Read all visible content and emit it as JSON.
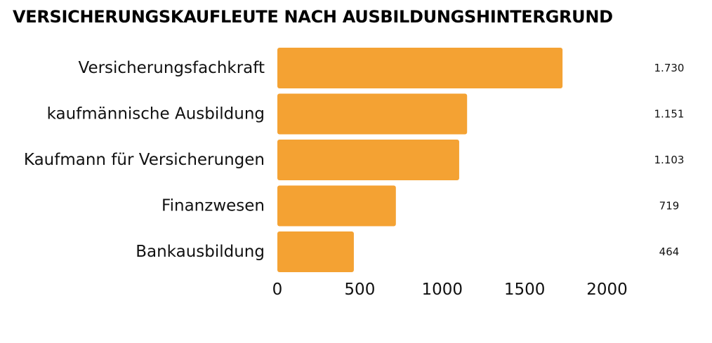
{
  "chart_data": {
    "type": "bar",
    "orientation": "horizontal",
    "title": "VERSICHERUNGSKAUFLEUTE NACH AUSBILDUNGSHINTERGRUND",
    "categories": [
      "Versicherungsfachkraft",
      "kaufmännische Ausbildung",
      "Kaufmann für Versicherungen",
      "Finanzwesen",
      "Bankausbildung"
    ],
    "values": [
      1730,
      1151,
      1103,
      719,
      464
    ],
    "value_labels": [
      "1.730",
      "1.151",
      "1.103",
      "719",
      "464"
    ],
    "xlim": [
      0,
      2100
    ],
    "xticks": [
      0,
      500,
      1000,
      1500,
      2000
    ],
    "xlabel": "",
    "ylabel": "",
    "bar_color": "#F4A233",
    "grid": false,
    "legend": "none"
  }
}
